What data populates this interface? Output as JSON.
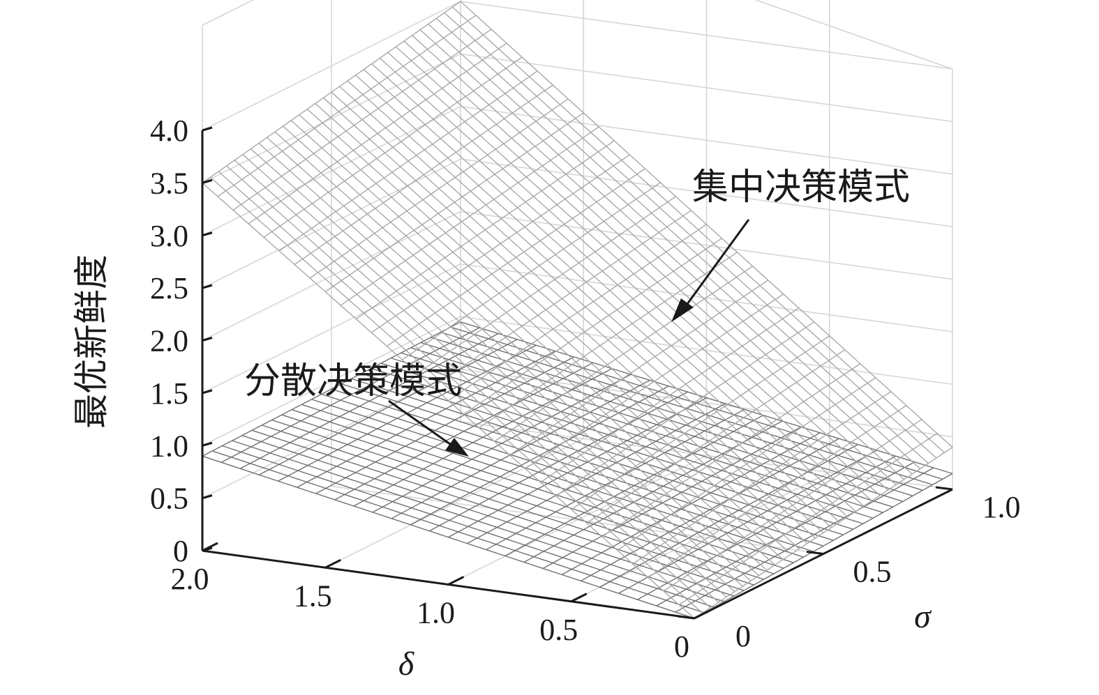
{
  "chart_data": {
    "type": "surface3d",
    "title": "",
    "zlabel": "最优新鲜度",
    "xlabel": "δ",
    "ylabel": "σ",
    "x_range": [
      0,
      2.0
    ],
    "y_range": [
      0,
      1.0
    ],
    "z_range": [
      0,
      4.0
    ],
    "x_ticks": [
      "2.0",
      "1.5",
      "1.0",
      "0.5",
      "0"
    ],
    "y_ticks": [
      "0",
      "0.5",
      "1.0"
    ],
    "z_ticks": [
      "0",
      "0.5",
      "1.0",
      "1.5",
      "2.0",
      "2.5",
      "3.0",
      "3.5",
      "4.0"
    ],
    "grid": true,
    "series": [
      {
        "name": "集中决策模式",
        "corner_values": {
          "d0_s0": 0,
          "d2_s0": 3.5,
          "d2_s1": 4.0,
          "d0_s1": 0.4
        },
        "stroke": "#a8a8a8"
      },
      {
        "name": "分散决策模式",
        "corner_values": {
          "d0_s0": 0,
          "d2_s0": 0.9,
          "d2_s1": 0.95,
          "d0_s1": 0.15
        },
        "stroke": "#707070"
      }
    ],
    "annotations": [
      {
        "text": "集中决策模式",
        "points_to": "集中决策模式"
      },
      {
        "text": "分散决策模式",
        "points_to": "分散决策模式"
      }
    ]
  }
}
